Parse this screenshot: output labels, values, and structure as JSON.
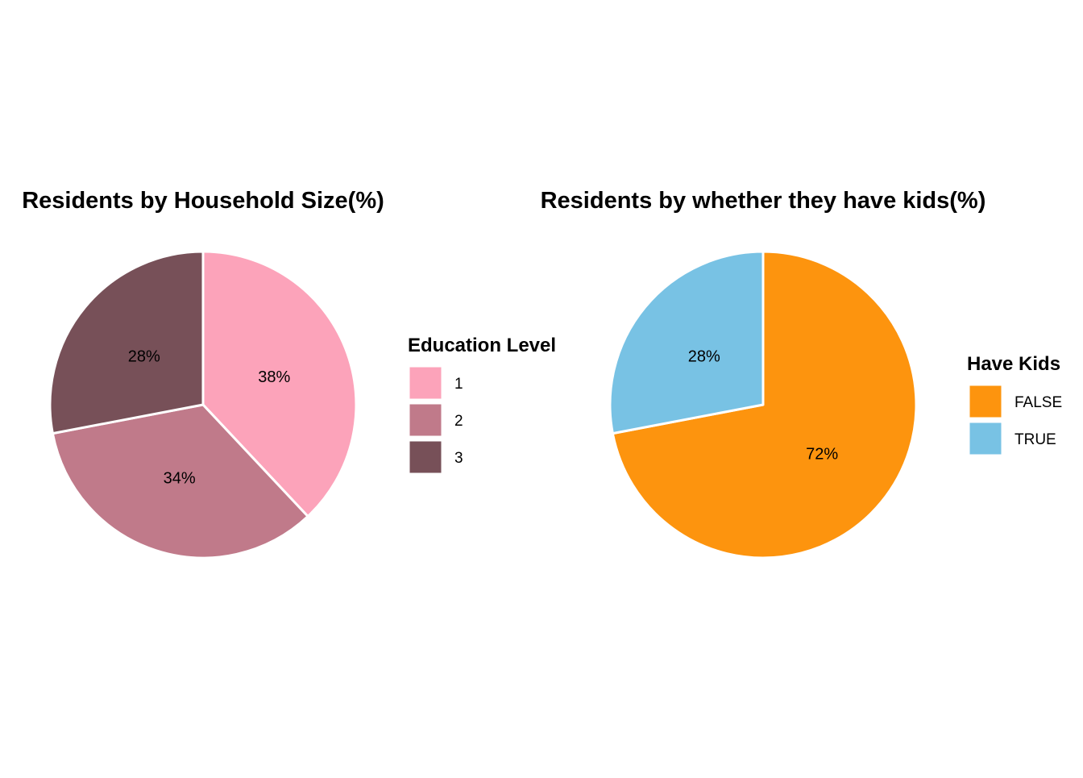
{
  "chart_data": [
    {
      "type": "pie",
      "title": "Residents by Household Size(%)",
      "legend_title": "Education Level",
      "legend_position": "right",
      "slices": [
        {
          "label": "1",
          "value": 38,
          "display": "38%",
          "color": "#FCA3BA"
        },
        {
          "label": "2",
          "value": 34,
          "display": "34%",
          "color": "#C07A8A"
        },
        {
          "label": "3",
          "value": 28,
          "display": "28%",
          "color": "#775058"
        }
      ]
    },
    {
      "type": "pie",
      "title": "Residents by whether they have kids(%)",
      "legend_title": "Have Kids",
      "legend_position": "right",
      "slices": [
        {
          "label": "FALSE",
          "value": 72,
          "display": "72%",
          "color": "#FD940E"
        },
        {
          "label": "TRUE",
          "value": 28,
          "display": "28%",
          "color": "#78C2E4"
        }
      ]
    }
  ]
}
